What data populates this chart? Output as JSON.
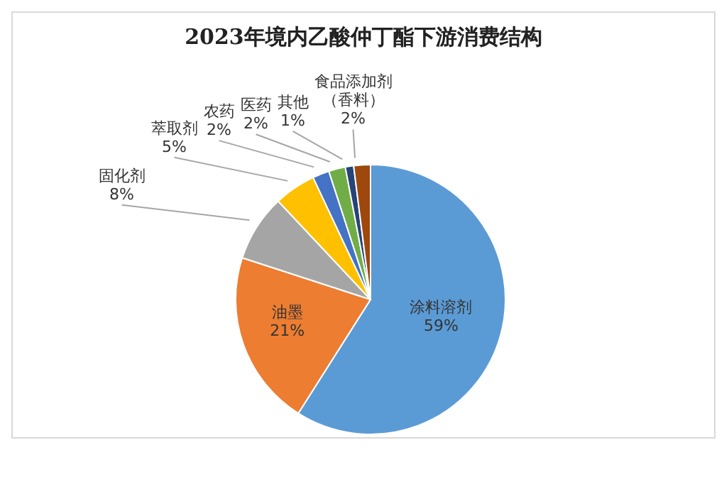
{
  "chart_data": {
    "type": "pie",
    "title": "2023年境内乙酸仲丁酯下游消费结构",
    "categories": [
      "涂料溶剂",
      "油墨",
      "固化剂",
      "萃取剂",
      "农药",
      "医药",
      "其他",
      "食品添加剂（香料）"
    ],
    "values": [
      59,
      21,
      8,
      5,
      2,
      2,
      1,
      2
    ],
    "colors": [
      "#5b9bd5",
      "#ed7d31",
      "#a5a5a5",
      "#ffc000",
      "#4472c4",
      "#70ad47",
      "#264478",
      "#9e480e"
    ],
    "value_labels": [
      "59%",
      "21%",
      "8%",
      "5%",
      "2%",
      "2%",
      "1%",
      "2%"
    ]
  }
}
